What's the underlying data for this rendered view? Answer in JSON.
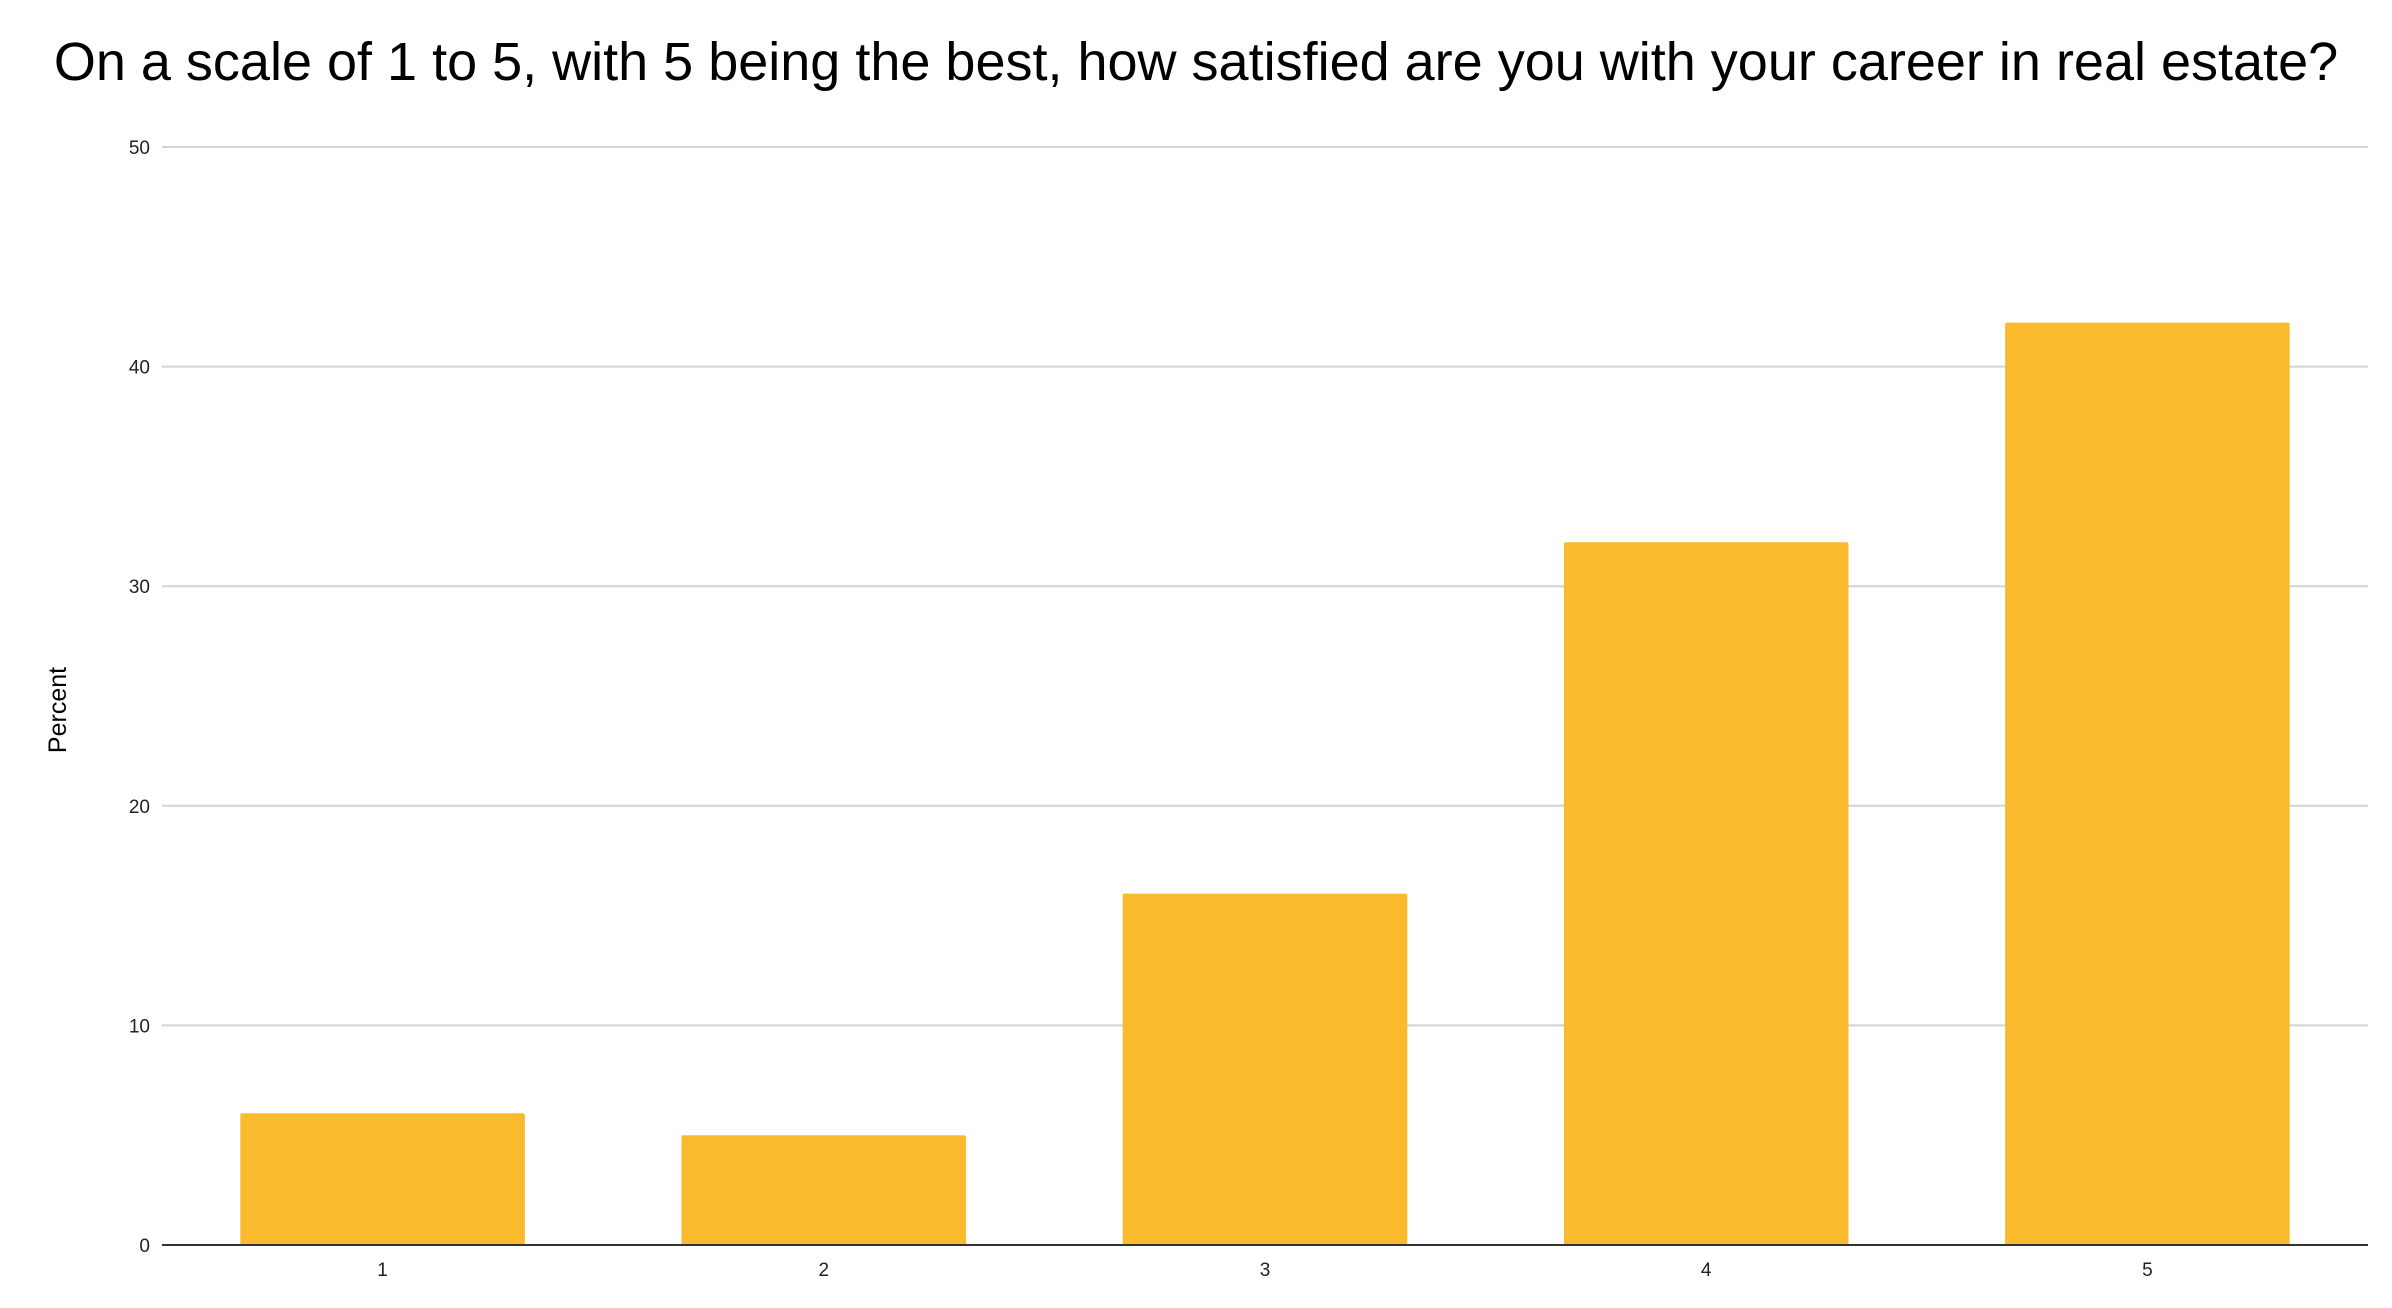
{
  "chart_data": {
    "type": "bar",
    "title": "On a scale of 1 to 5, with 5 being the best, how satisfied are you with your career in real estate?",
    "xlabel": "",
    "ylabel": "Percent",
    "categories": [
      "1",
      "2",
      "3",
      "4",
      "5"
    ],
    "values": [
      6,
      5,
      16,
      32,
      42
    ],
    "ylim": [
      0,
      50
    ],
    "yticks": [
      0,
      10,
      20,
      30,
      40,
      50
    ],
    "grid": true,
    "legend": "none",
    "bar_color": "#F9BB2D",
    "grid_color": "#D3D3D3",
    "axis_color": "#333333"
  }
}
